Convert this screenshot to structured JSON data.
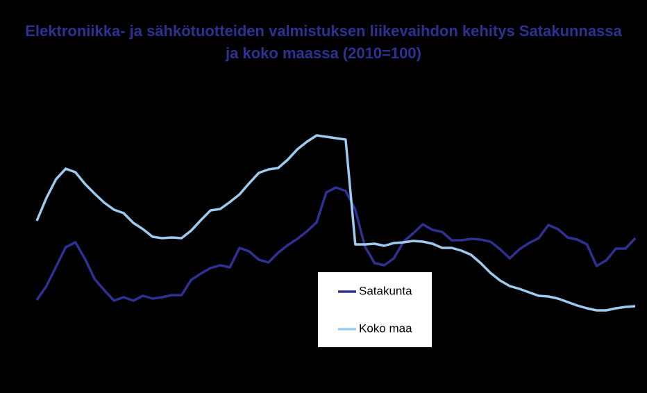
{
  "chart_data": {
    "type": "line",
    "title": [
      "Elektroniikka- ja sähkötuotteiden valmistuksen liikevaihdon kehitys Satakunnassa",
      "ja koko maassa (2010=100)"
    ],
    "categories": [
      null,
      null,
      null,
      null,
      null,
      null,
      null,
      null,
      null,
      null,
      null,
      null,
      null,
      null,
      null,
      null,
      null,
      null,
      null,
      null,
      null,
      null,
      null,
      null,
      null,
      null,
      null,
      null,
      null,
      null,
      null,
      null,
      null,
      null,
      null,
      null,
      null,
      null,
      null,
      null,
      null,
      null,
      null,
      null,
      null,
      null,
      null,
      null,
      null,
      null,
      null,
      null,
      null,
      null,
      null,
      null,
      null,
      null,
      null,
      null,
      null,
      null,
      null
    ],
    "series": [
      {
        "name": "Satakunta",
        "color": "#2e3192",
        "values": [
          68,
          88,
          116,
          144,
          151,
          127,
          98,
          82,
          67,
          72,
          67,
          74,
          70,
          72,
          75,
          75,
          97,
          106,
          114,
          118,
          115,
          143,
          138,
          126,
          122,
          136,
          147,
          156,
          167,
          180,
          223,
          230,
          225,
          198,
          145,
          121,
          118,
          128,
          152,
          164,
          177,
          169,
          166,
          154,
          154,
          156,
          155,
          152,
          141,
          128,
          141,
          150,
          157,
          176,
          170,
          158,
          155,
          148,
          117,
          125,
          142,
          142,
          157
        ]
      },
      {
        "name": "Koko maa",
        "color": "#9dcbf0",
        "values": [
          182,
          215,
          242,
          257,
          252,
          235,
          221,
          208,
          198,
          193,
          179,
          170,
          159,
          157,
          158,
          157,
          168,
          183,
          197,
          199,
          209,
          220,
          236,
          251,
          256,
          258,
          270,
          285,
          296,
          305,
          303,
          301,
          299,
          148,
          148,
          149,
          146,
          150,
          151,
          153,
          152,
          149,
          143,
          143,
          139,
          133,
          121,
          107,
          96,
          88,
          84,
          79,
          74,
          73,
          70,
          65,
          60,
          56,
          53,
          53,
          56,
          58,
          59
        ]
      }
    ],
    "ylim": [
      0,
      400
    ],
    "legend": "lower center"
  }
}
